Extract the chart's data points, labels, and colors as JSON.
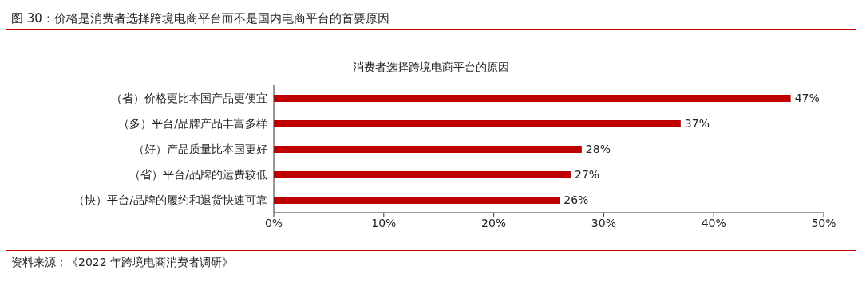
{
  "chart_data": {
    "type": "bar",
    "orientation": "horizontal",
    "title": "消费者选择跨境电商平台的原因",
    "subtitle": "图 30：价格是消费者选择跨境电商平台而不是国内电商平台的首要原因",
    "categories": [
      "（省）价格更比本国产品更便宜",
      "（多）平台/品牌产品丰富多样",
      "（好）产品质量比本国更好",
      "（省）平台/品牌的运费较低",
      "（快）平台/品牌的履约和退货快速可靠"
    ],
    "values": [
      47,
      37,
      28,
      27,
      26
    ],
    "color": "#c00000",
    "value_labels": [
      "47%",
      "37%",
      "28%",
      "27%",
      "26%"
    ],
    "xlim": [
      0,
      50
    ],
    "xticks": [
      {
        "value": 0,
        "label": "0%"
      },
      {
        "value": 10,
        "label": "10%"
      },
      {
        "value": 20,
        "label": "20%"
      },
      {
        "value": 30,
        "label": "30%"
      },
      {
        "value": 40,
        "label": "40%"
      },
      {
        "value": 50,
        "label": "50%"
      }
    ],
    "grid": false,
    "legend": false,
    "annotations": [
      "资料来源：《2022 年跨境电商消费者调研》"
    ]
  }
}
